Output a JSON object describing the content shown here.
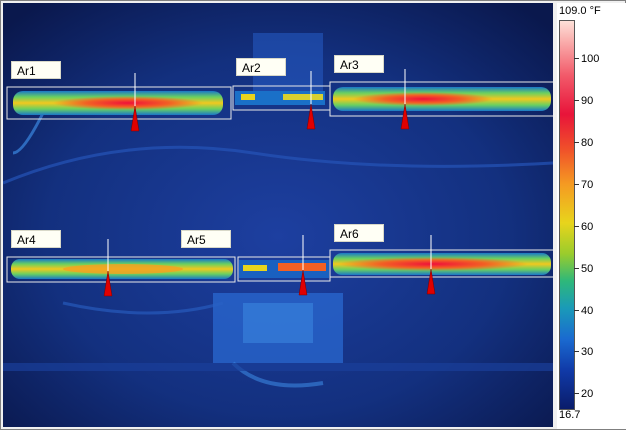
{
  "scale": {
    "max_label": "109.0 °F",
    "min_label": "16.7",
    "ticks": [
      "100",
      "90",
      "80",
      "70",
      "60",
      "50",
      "40",
      "30",
      "20"
    ]
  },
  "areas": [
    {
      "id": "ar1",
      "label": "Ar1"
    },
    {
      "id": "ar2",
      "label": "Ar2"
    },
    {
      "id": "ar3",
      "label": "Ar3"
    },
    {
      "id": "ar4",
      "label": "Ar4"
    },
    {
      "id": "ar5",
      "label": "Ar5"
    },
    {
      "id": "ar6",
      "label": "Ar6"
    }
  ],
  "colors": {
    "background": "#0c1a55",
    "hot": "#e8143a",
    "warm": "#f5d21c",
    "marker": "#e00000"
  }
}
